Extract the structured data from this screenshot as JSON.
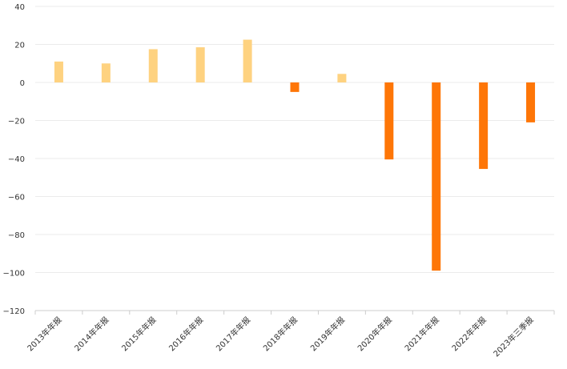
{
  "chart_data": {
    "type": "bar",
    "title": "",
    "xlabel": "",
    "ylabel": "",
    "categories": [
      "2013年年报",
      "2014年年报",
      "2015年年报",
      "2016年年报",
      "2017年年报",
      "2018年年报",
      "2019年年报",
      "2020年年报",
      "2021年年报",
      "2022年年报",
      "2023年三季报"
    ],
    "values": [
      11,
      10,
      17.5,
      18.5,
      22.5,
      -5,
      4.5,
      -40.5,
      -99,
      -45.5,
      -21
    ],
    "ylim": [
      -120,
      40
    ],
    "yticks": [
      "40",
      "20",
      "0",
      "−20",
      "−40",
      "−60",
      "−80",
      "−100",
      "−120"
    ],
    "grid": true,
    "legend": "none",
    "colors": {
      "positive": "#FED280",
      "negative": "#FE7607",
      "grid": "#EBEBEB",
      "axis": "#CCCCCC",
      "text": "#333333"
    }
  }
}
